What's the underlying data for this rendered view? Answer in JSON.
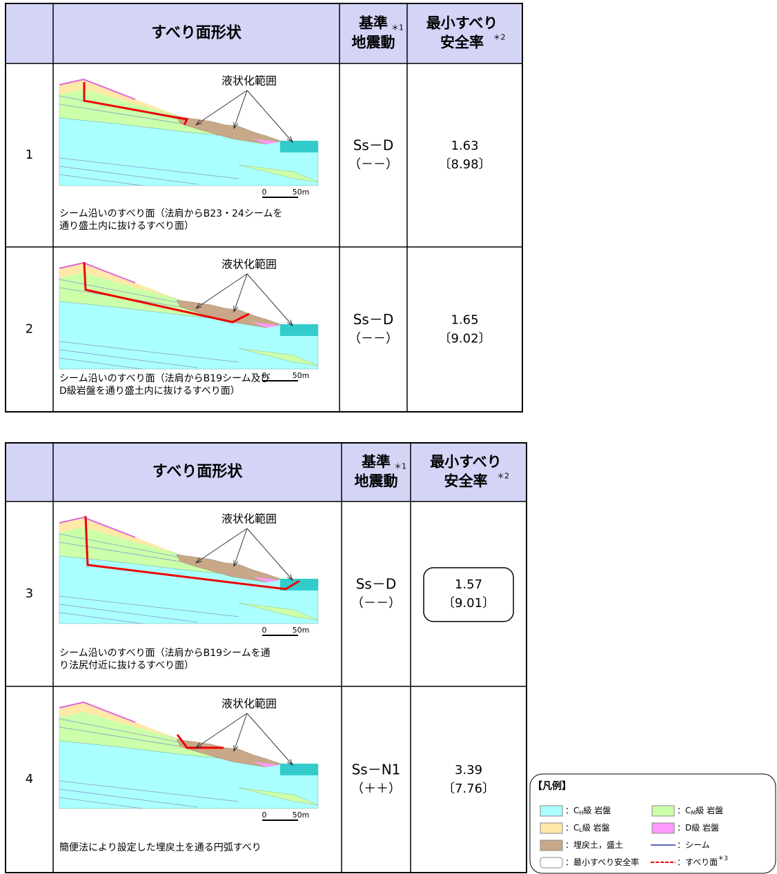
{
  "tables": [
    {
      "header": {
        "shape": "すべり面形状",
        "motion": [
          "基準",
          "地震動"
        ],
        "motion_note": "＊1",
        "factor": [
          "最小すべり",
          "安全率"
        ],
        "factor_note": "＊2"
      },
      "rows": [
        {
          "no": "1",
          "liquefaction": "液状化範囲",
          "scale": [
            "0",
            "50m"
          ],
          "caption": [
            "シーム沿いのすべり面（法肩からB23・24シームを",
            "通り盛土内に抜けるすべり面）"
          ],
          "motion": "Ss－D",
          "sign": "（－－）",
          "fs": "1.63",
          "fs_bracket": "〔8.98〕"
        },
        {
          "no": "2",
          "liquefaction": "液状化範囲",
          "scale": [
            "0",
            "50m"
          ],
          "caption": [
            "シーム沿いのすべり面（法肩からB19シーム及び",
            "D級岩盤を通り盛土内に抜けるすべり面）"
          ],
          "motion": "Ss－D",
          "sign": "（－－）",
          "fs": "1.65",
          "fs_bracket": "〔9.02〕"
        }
      ]
    },
    {
      "header": {
        "shape": "すべり面形状",
        "motion": [
          "基準",
          "地震動"
        ],
        "motion_note": "＊1",
        "factor": [
          "最小すべり",
          "安全率"
        ],
        "factor_note": "＊2"
      },
      "rows": [
        {
          "no": "3",
          "liquefaction": "液状化範囲",
          "scale": [
            "0",
            "50m"
          ],
          "caption": [
            "シーム沿いのすべり面（法肩からB19シームを通",
            "り法尻付近に抜けるすべり面）"
          ],
          "motion": "Ss－D",
          "sign": "（－－）",
          "fs": "1.57",
          "fs_bracket": "〔9.01〕",
          "boxed": true
        },
        {
          "no": "4",
          "liquefaction": "液状化範囲",
          "scale": [
            "0",
            "50m"
          ],
          "caption": [
            "簡便法により設定した埋戻土を通る円弧すべり"
          ],
          "motion": "Ss－N1",
          "sign": "（＋＋）",
          "fs": "3.39",
          "fs_bracket": "〔7.76〕"
        }
      ]
    }
  ],
  "legend": {
    "title": "【凡例】",
    "items": [
      {
        "kind": "swatch",
        "color": "#aaffff",
        "label": "：C",
        "sub": "H",
        "after": "級 岩盤"
      },
      {
        "kind": "swatch",
        "color": "#ccffaa",
        "label": "：C",
        "sub": "M",
        "after": "級 岩盤"
      },
      {
        "kind": "swatch",
        "color": "#ffe8a8",
        "label": "：C",
        "sub": "L",
        "after": "級 岩盤"
      },
      {
        "kind": "swatch",
        "color": "#ff99ff",
        "label": "：D級 岩盤"
      },
      {
        "kind": "swatch",
        "color": "#c8a888",
        "label": "：埋戻土，盛土"
      },
      {
        "kind": "line",
        "color": "#2233aa",
        "label": "：シーム"
      },
      {
        "kind": "box",
        "color": "#ffffff",
        "label": "：最小すべり安全率"
      },
      {
        "kind": "dashed",
        "color": "#ee0000",
        "label": "：すべり面",
        "note": "＊3"
      }
    ]
  }
}
